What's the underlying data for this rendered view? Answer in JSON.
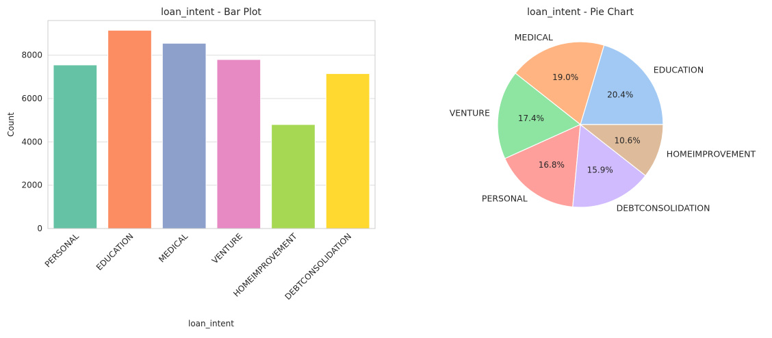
{
  "chart_data": [
    {
      "type": "bar",
      "title": "loan_intent - Bar Plot",
      "xlabel": "loan_intent",
      "ylabel": "Count",
      "categories": [
        "PERSONAL",
        "EDUCATION",
        "MEDICAL",
        "VENTURE",
        "HOMEIMPROVEMENT",
        "DEBTCONSOLIDATION"
      ],
      "values": [
        7550,
        9150,
        8550,
        7800,
        4800,
        7150
      ],
      "colors": [
        "#66c2a5",
        "#fc8d62",
        "#8da0cb",
        "#e78ac3",
        "#a6d854",
        "#ffd92f"
      ],
      "ylim": [
        0,
        9600
      ],
      "yticks": [
        0,
        2000,
        4000,
        6000,
        8000
      ],
      "ytick_labels": [
        "0",
        "2000",
        "4000",
        "6000",
        "8000"
      ],
      "grid": true
    },
    {
      "type": "pie",
      "title": "loan_intent - Pie Chart",
      "labels": [
        "EDUCATION",
        "MEDICAL",
        "VENTURE",
        "PERSONAL",
        "DEBTCONSOLIDATION",
        "HOMEIMPROVEMENT"
      ],
      "values": [
        20.4,
        19.0,
        17.4,
        16.8,
        15.9,
        10.6
      ],
      "percent_labels": [
        "20.4%",
        "19.0%",
        "17.4%",
        "16.8%",
        "15.9%",
        "10.6%"
      ],
      "colors": [
        "#a1c9f4",
        "#ffb482",
        "#8de5a1",
        "#ff9f9b",
        "#d0bbff",
        "#debb9b"
      ],
      "start_angle": 0,
      "direction": "counterclockwise"
    }
  ]
}
